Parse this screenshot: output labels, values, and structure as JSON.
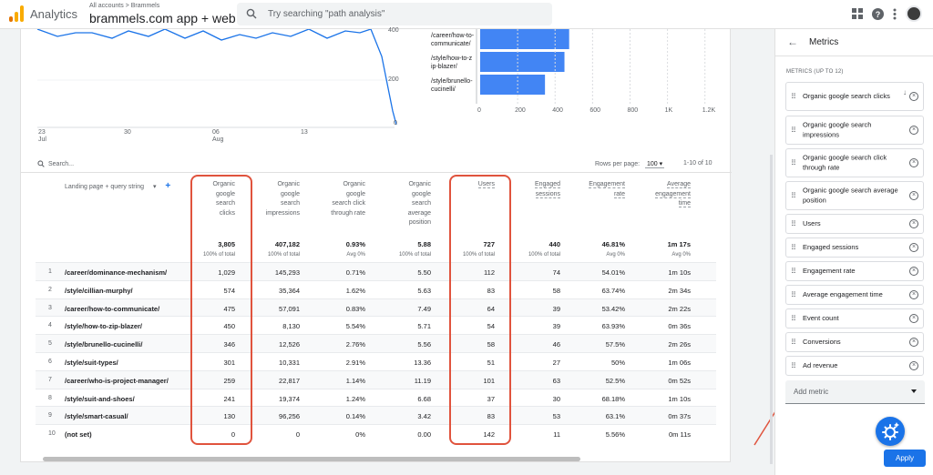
{
  "app": {
    "name": "Analytics",
    "breadcrumb": "All accounts > Brammels",
    "property": "brammels.com app + web",
    "search_placeholder": "Try searching \"path analysis\""
  },
  "line_chart": {
    "x_ticks": [
      {
        "day": "23",
        "month": "Jul"
      },
      {
        "day": "30",
        "month": ""
      },
      {
        "day": "06",
        "month": "Aug"
      },
      {
        "day": "13",
        "month": ""
      }
    ],
    "y_ticks": [
      "400",
      "200",
      "0"
    ]
  },
  "bar_chart": {
    "labels": [
      "/career/how-to-communicate/",
      "/style/how-to-zip-blazer/",
      "/style/brunello-cucinelli/"
    ],
    "label_lines": [
      [
        "/career/how-to-",
        "communicate/"
      ],
      [
        "/style/how-to-z",
        "ip-blazer/"
      ],
      [
        "/style/brunello-",
        "cucinelli/"
      ]
    ],
    "x_ticks": [
      "0",
      "200",
      "400",
      "600",
      "800",
      "1K",
      "1.2K"
    ],
    "values": [
      475,
      450,
      346
    ],
    "color": "#4285f4"
  },
  "table": {
    "search_placeholder": "Search...",
    "rows_per_page_label": "Rows per page:",
    "rows_per_page_value": "100",
    "pagination": "1-10 of 10",
    "dimension_header": "Landing page + query string",
    "columns": [
      {
        "key": "clicks",
        "header": "Organic google search clicks",
        "header_lines": [
          "Organic",
          "google",
          "search",
          "clicks"
        ],
        "underline": false,
        "total": "3,805",
        "total_note": "100% of total"
      },
      {
        "key": "impr",
        "header": "Organic google search impressions",
        "header_lines": [
          "Organic",
          "google",
          "search",
          "impressions"
        ],
        "underline": false,
        "total": "407,182",
        "total_note": "100% of total"
      },
      {
        "key": "ctr",
        "header": "Organic google search click through rate",
        "header_lines": [
          "Organic",
          "google",
          "search click",
          "through rate"
        ],
        "underline": false,
        "total": "0.93%",
        "total_note": "Avg 0%"
      },
      {
        "key": "pos",
        "header": "Organic google search average position",
        "header_lines": [
          "Organic",
          "google",
          "search",
          "average",
          "position"
        ],
        "underline": false,
        "total": "5.88",
        "total_note": "100% of total"
      },
      {
        "key": "users",
        "header": "Users",
        "header_lines": [
          "Users"
        ],
        "underline": true,
        "total": "727",
        "total_note": "100% of total"
      },
      {
        "key": "eng",
        "header": "Engaged sessions",
        "header_lines": [
          "Engaged",
          "sessions"
        ],
        "underline": true,
        "total": "440",
        "total_note": "100% of total"
      },
      {
        "key": "rate",
        "header": "Engagement rate",
        "header_lines": [
          "Engagement",
          "rate"
        ],
        "underline": true,
        "total": "46.81%",
        "total_note": "Avg 0%"
      },
      {
        "key": "time",
        "header": "Average engagement time",
        "header_lines": [
          "Average",
          "engagement",
          "time"
        ],
        "underline": true,
        "total": "1m 17s",
        "total_note": "Avg 0%"
      }
    ],
    "rows": [
      {
        "idx": "1",
        "page": "/career/dominance-mechanism/",
        "values": [
          "1,029",
          "145,293",
          "0.71%",
          "5.50",
          "112",
          "74",
          "54.01%",
          "1m 10s"
        ]
      },
      {
        "idx": "2",
        "page": "/style/cillian-murphy/",
        "values": [
          "574",
          "35,364",
          "1.62%",
          "5.63",
          "83",
          "58",
          "63.74%",
          "2m 34s"
        ]
      },
      {
        "idx": "3",
        "page": "/career/how-to-communicate/",
        "values": [
          "475",
          "57,091",
          "0.83%",
          "7.49",
          "64",
          "39",
          "53.42%",
          "2m 22s"
        ]
      },
      {
        "idx": "4",
        "page": "/style/how-to-zip-blazer/",
        "values": [
          "450",
          "8,130",
          "5.54%",
          "5.71",
          "54",
          "39",
          "63.93%",
          "0m 36s"
        ]
      },
      {
        "idx": "5",
        "page": "/style/brunello-cucinelli/",
        "values": [
          "346",
          "12,526",
          "2.76%",
          "5.56",
          "58",
          "46",
          "57.5%",
          "2m 26s"
        ]
      },
      {
        "idx": "6",
        "page": "/style/suit-types/",
        "values": [
          "301",
          "10,331",
          "2.91%",
          "13.36",
          "51",
          "27",
          "50%",
          "1m 06s"
        ]
      },
      {
        "idx": "7",
        "page": "/career/who-is-project-manager/",
        "values": [
          "259",
          "22,817",
          "1.14%",
          "11.19",
          "101",
          "63",
          "52.5%",
          "0m 52s"
        ]
      },
      {
        "idx": "8",
        "page": "/style/suit-and-shoes/",
        "values": [
          "241",
          "19,374",
          "1.24%",
          "6.68",
          "37",
          "30",
          "68.18%",
          "1m 10s"
        ]
      },
      {
        "idx": "9",
        "page": "/style/smart-casual/",
        "values": [
          "130",
          "96,256",
          "0.14%",
          "3.42",
          "83",
          "53",
          "63.1%",
          "0m 37s"
        ]
      },
      {
        "idx": "10",
        "page": "(not set)",
        "values": [
          "0",
          "0",
          "0%",
          "0.00",
          "142",
          "11",
          "5.56%",
          "0m 11s"
        ]
      }
    ]
  },
  "panel": {
    "title": "Metrics",
    "subtitle": "METRICS (UP TO 12)",
    "metrics": [
      "Organic google search clicks",
      "Organic google search impressions",
      "Organic google search click through rate",
      "Organic google search average position",
      "Users",
      "Engaged sessions",
      "Engagement rate",
      "Average engagement time",
      "Event count",
      "Conversions",
      "Ad revenue"
    ],
    "add_metric_placeholder": "Add metric",
    "apply_label": "Apply"
  },
  "colors": {
    "accent": "#1a73e8",
    "highlight": "#e0533d",
    "series": "#4285f4"
  }
}
